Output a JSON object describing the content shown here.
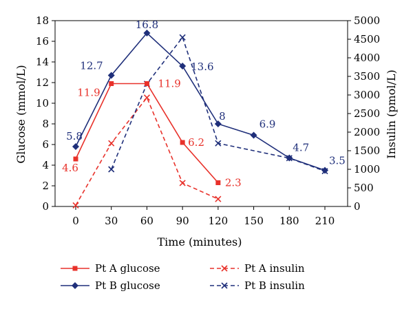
{
  "chart_data": {
    "type": "line",
    "title": "",
    "xlabel": "Time (minutes)",
    "ylabel": "Glucose (mmol/L)",
    "y2label": "Insulin (pmol/L)",
    "x": [
      0,
      30,
      60,
      90,
      120,
      150,
      180,
      210
    ],
    "x_tick_labels": [
      "0",
      "30",
      "60",
      "90",
      "120",
      "150",
      "180",
      "210"
    ],
    "ylim": [
      0,
      18
    ],
    "y_ticks": [
      0,
      2,
      4,
      6,
      8,
      10,
      12,
      14,
      16,
      18
    ],
    "y2lim": [
      0,
      5000
    ],
    "y2_ticks": [
      0,
      500,
      1000,
      1500,
      2000,
      2500,
      3000,
      3500,
      4000,
      4500,
      5000
    ],
    "grid": false,
    "legend_position": "bottom",
    "series": [
      {
        "name": "Pt A glucose",
        "axis": "left",
        "color": "#e8312a",
        "line": "solid",
        "marker": "square",
        "x": [
          0,
          30,
          60,
          90,
          120
        ],
        "values": [
          4.6,
          11.9,
          11.9,
          6.2,
          2.3
        ],
        "labels": [
          "4.6",
          "11.9",
          "11.9",
          "6.2",
          "2.3"
        ]
      },
      {
        "name": "Pt B glucose",
        "axis": "left",
        "color": "#1f2f7a",
        "line": "solid",
        "marker": "diamond",
        "x": [
          0,
          30,
          60,
          90,
          120,
          150,
          180,
          210
        ],
        "values": [
          5.8,
          12.7,
          16.8,
          13.6,
          8,
          6.9,
          4.7,
          3.5
        ],
        "labels": [
          "5.8",
          "12.7",
          "16.8",
          "13.6",
          "8",
          "6.9",
          "4.7",
          "3.5"
        ]
      },
      {
        "name": "Pt A insulin",
        "axis": "right",
        "color": "#e8312a",
        "line": "dashed",
        "marker": "x",
        "x": [
          0,
          30,
          60,
          90,
          120
        ],
        "values": [
          30,
          1700,
          2930,
          630,
          200
        ]
      },
      {
        "name": "Pt B insulin",
        "axis": "right",
        "color": "#1f2f7a",
        "line": "dashed",
        "marker": "x",
        "x": [
          30,
          60,
          90,
          120,
          180,
          210
        ],
        "values": [
          1000,
          3300,
          4550,
          1700,
          1300,
          950
        ]
      }
    ]
  }
}
